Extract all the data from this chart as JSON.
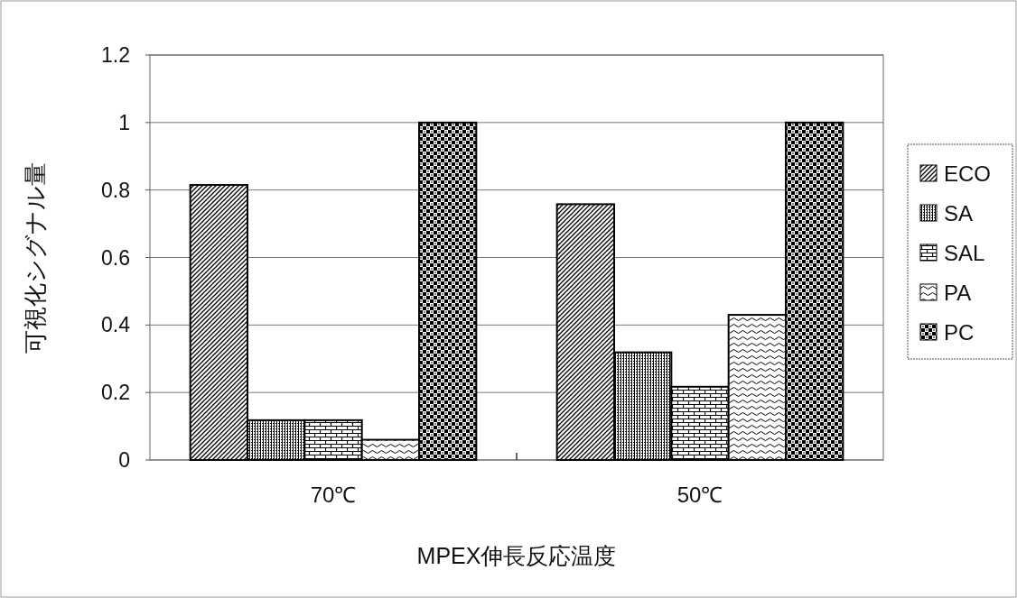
{
  "chart_data": {
    "type": "bar",
    "xlabel": "MPEX伸長反応温度",
    "ylabel": "可視化シグナル量",
    "categories": [
      "70℃",
      "50℃"
    ],
    "series": [
      {
        "name": "ECO",
        "color": "#000000",
        "values": [
          0.815,
          0.758
        ]
      },
      {
        "name": "SA",
        "color": "#000000",
        "values": [
          0.118,
          0.319
        ]
      },
      {
        "name": "SAL",
        "color": "#000000",
        "values": [
          0.118,
          0.217
        ]
      },
      {
        "name": "PA",
        "color": "#000000",
        "values": [
          0.06,
          0.43
        ]
      },
      {
        "name": "PC",
        "color": "#000000",
        "values": [
          1.0,
          1.0
        ]
      }
    ],
    "ylim": [
      0,
      1.2
    ],
    "yticks": [
      0,
      0.2,
      0.4,
      0.6,
      0.8,
      1,
      1.2
    ],
    "grid": "y",
    "legend": "right"
  }
}
